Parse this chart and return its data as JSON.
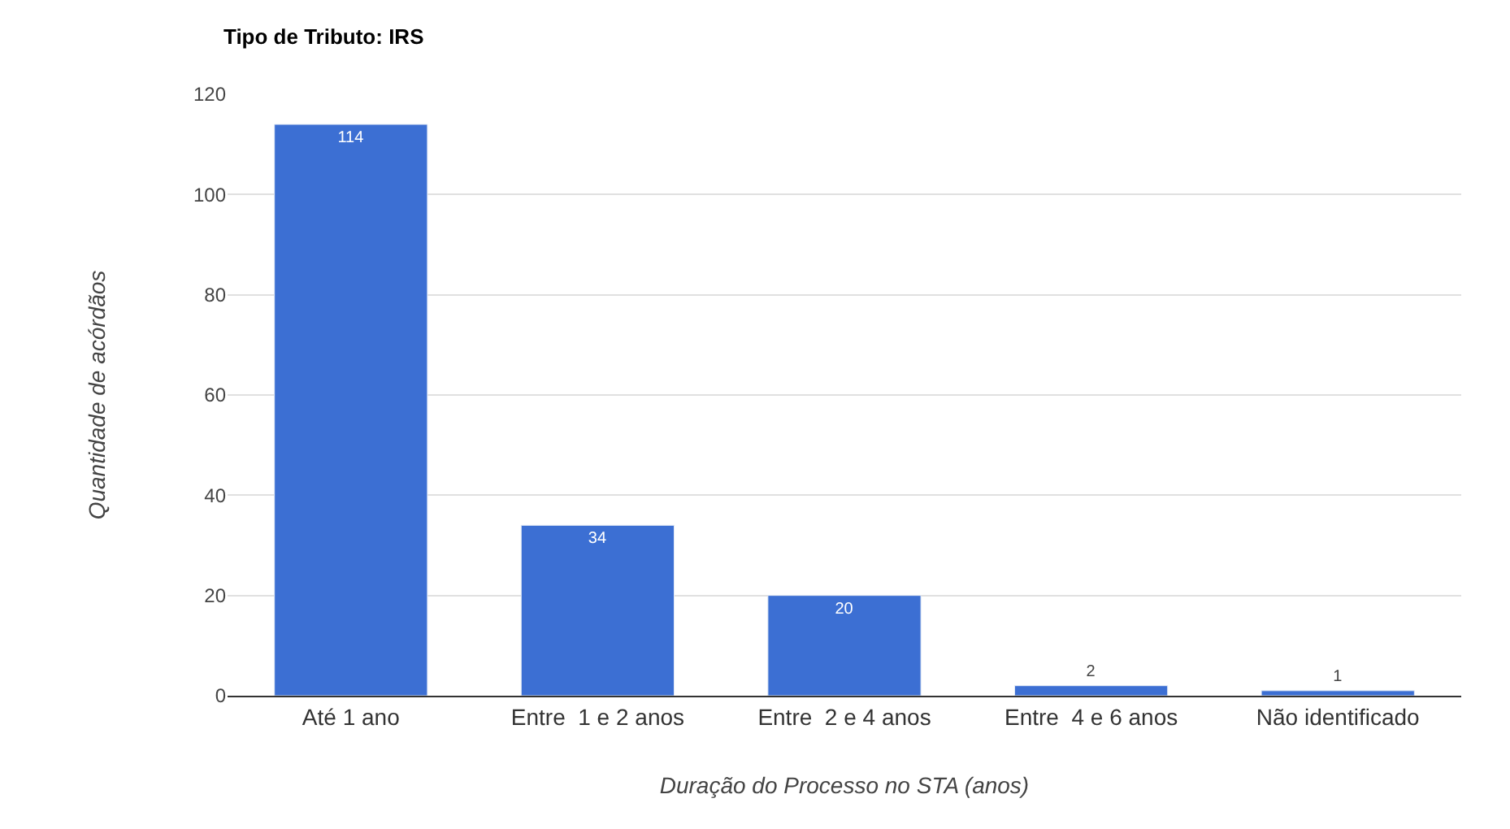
{
  "chart_data": {
    "type": "bar",
    "title": "Tipo de Tributo: IRS",
    "xlabel": "Duração do Processo no STA (anos)",
    "ylabel": "Quantidade de acórdãos",
    "categories": [
      "Até 1 ano",
      "Entre  1 e 2 anos",
      "Entre  2 e 4 anos",
      "Entre  4 e 6 anos",
      "Não identificado"
    ],
    "values": [
      114,
      34,
      20,
      2,
      1
    ],
    "color": "#3c6fd3",
    "ylim": [
      0,
      120
    ],
    "yticks": [
      0,
      20,
      40,
      60,
      80,
      100,
      120
    ],
    "grid": "y",
    "data_labels": true
  }
}
